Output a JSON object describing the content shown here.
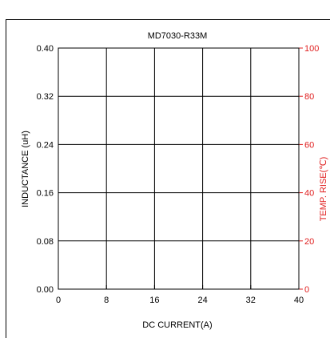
{
  "chart_data": {
    "type": "line",
    "title": "MD7030-R33M",
    "xlabel": "DC CURRENT(A)",
    "ylabel": "INDUCTANCE (uH)",
    "y2label": "TEMP. RISE(℃)",
    "xlim": [
      0,
      40
    ],
    "ylim": [
      0,
      0.4
    ],
    "y2lim": [
      0,
      100
    ],
    "xticks": [
      "0",
      "8",
      "16",
      "24",
      "32",
      "40"
    ],
    "yticks": [
      "0.00",
      "0.08",
      "0.16",
      "0.24",
      "0.32",
      "0.40"
    ],
    "y2ticks": [
      "0",
      "20",
      "40",
      "60",
      "80",
      "100"
    ],
    "grid": true,
    "series": [],
    "colors": {
      "primary_axis": "#000000",
      "secondary_axis": "#e02020",
      "grid": "#000000"
    }
  }
}
